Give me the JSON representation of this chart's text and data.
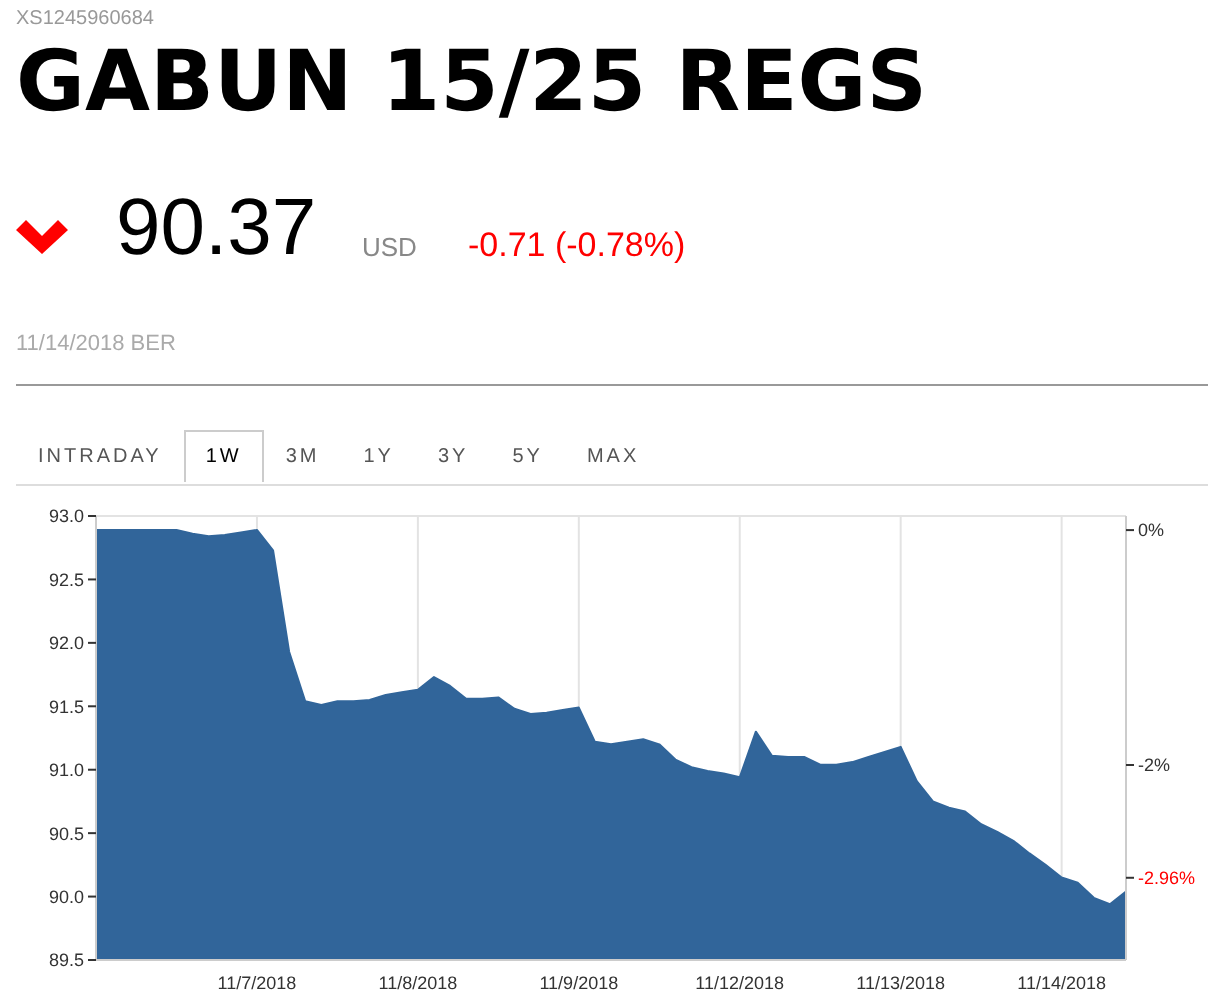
{
  "chart_data": {
    "type": "area",
    "title": "GABUN 15/25 REGS",
    "annotations": [
      "XS1245960684",
      "90.37",
      "USD",
      "-0.71 (-0.78%)",
      "11/14/2018 BER",
      "INTRADAY",
      "1W",
      "3M",
      "1Y",
      "3Y",
      "5Y",
      "MAX"
    ],
    "categories": [
      null,
      null,
      null,
      null,
      null,
      null,
      null,
      null,
      null,
      null,
      "11/7/2018",
      null,
      null,
      null,
      null,
      null,
      null,
      null,
      null,
      null,
      "11/8/2018",
      null,
      null,
      null,
      null,
      null,
      null,
      null,
      null,
      null,
      "11/9/2018",
      null,
      null,
      null,
      null,
      null,
      null,
      null,
      null,
      null,
      "11/12/2018",
      null,
      null,
      null,
      null,
      null,
      null,
      null,
      null,
      null,
      "11/13/2018",
      null,
      null,
      null,
      null,
      null,
      null,
      null,
      null,
      null,
      "11/14/2018",
      null,
      null,
      null,
      null
    ],
    "series": [
      {
        "color": "#31659a",
        "values": [
          92.89,
          92.89,
          92.89,
          92.89,
          92.89,
          92.89,
          92.86,
          92.84,
          92.85,
          92.87,
          92.89,
          92.73,
          91.93,
          91.54,
          91.51,
          91.54,
          91.54,
          91.55,
          91.59,
          91.61,
          91.63,
          91.73,
          91.66,
          91.56,
          91.56,
          91.57,
          91.48,
          91.44,
          91.45,
          91.47,
          91.49,
          91.22,
          91.2,
          91.22,
          91.24,
          91.2,
          91.08,
          91.02,
          90.99,
          90.97,
          90.94,
          91.3,
          91.11,
          91.1,
          91.1,
          91.04,
          91.04,
          91.06,
          91.1,
          91.14,
          91.18,
          90.91,
          90.75,
          90.7,
          90.67,
          90.57,
          90.51,
          90.44,
          90.34,
          90.25,
          90.15,
          90.11,
          89.99,
          89.94,
          90.04
        ]
      }
    ],
    "ylim": [
      89.5,
      93.0
    ],
    "yticks": [
      {
        "value": 89.5,
        "label": "89.5"
      },
      {
        "value": 90,
        "label": "90.0"
      },
      {
        "value": 90.5,
        "label": "90.5"
      },
      {
        "value": 91,
        "label": "91.0"
      },
      {
        "value": 91.5,
        "label": "91.5"
      },
      {
        "value": 92,
        "label": "92.0"
      },
      {
        "value": 92.5,
        "label": "92.5"
      },
      {
        "value": 93,
        "label": "93.0"
      }
    ],
    "y2lim": [
      -3.66,
      0.12
    ],
    "y2ticks": [
      {
        "value": 0,
        "label": "0%"
      },
      {
        "value": -2,
        "label": "-2%"
      },
      {
        "value": -2.96,
        "label": "-2.96%"
      }
    ],
    "grid": true,
    "marker": "none"
  }
}
